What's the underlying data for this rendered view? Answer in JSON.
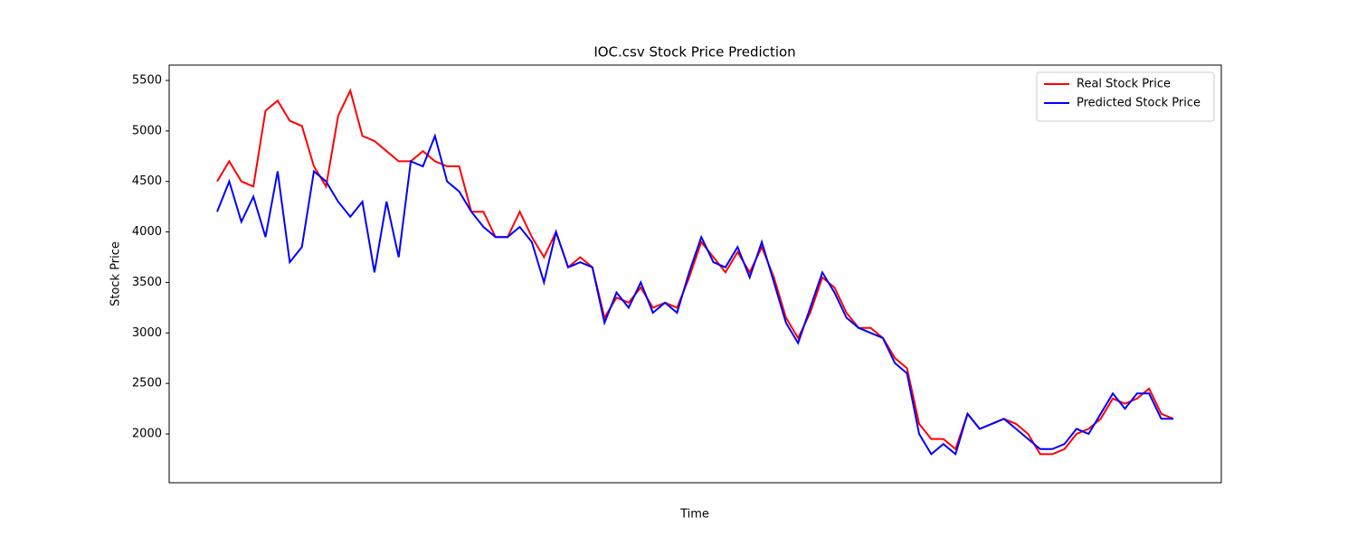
{
  "chart_data": {
    "type": "line",
    "title": "IOC.csv Stock Price Prediction",
    "x_label": "Time",
    "y_label": "Stock Price",
    "categories": [
      null,
      null,
      null,
      null,
      null,
      null,
      null,
      null,
      null,
      null,
      null,
      null,
      null,
      null,
      null,
      null,
      null,
      null,
      null,
      null,
      null,
      null,
      null,
      null,
      null,
      null,
      null,
      null,
      null,
      null,
      null,
      null,
      null,
      null,
      null,
      null,
      null,
      null,
      null,
      null,
      null,
      null,
      null,
      null,
      null,
      null,
      null,
      null,
      null,
      null,
      null,
      null,
      null,
      null,
      null,
      null,
      null,
      null,
      null,
      null,
      null,
      null,
      null,
      null,
      null,
      null,
      null,
      null,
      null,
      null,
      null,
      null,
      null,
      null,
      null,
      null,
      null,
      null,
      null,
      null
    ],
    "series": [
      {
        "name": "Real Stock Price",
        "color": "#ff0000",
        "values": [
          4500,
          4700,
          4500,
          4450,
          5200,
          5300,
          5100,
          5050,
          4650,
          4450,
          5150,
          5400,
          4950,
          4900,
          4800,
          4700,
          4700,
          4800,
          4700,
          4650,
          4650,
          4200,
          4200,
          3950,
          3950,
          4200,
          3950,
          3750,
          4000,
          3650,
          3750,
          3650,
          3150,
          3350,
          3300,
          3450,
          3250,
          3300,
          3250,
          3550,
          3900,
          3750,
          3600,
          3800,
          3600,
          3850,
          3550,
          3150,
          2950,
          3200,
          3550,
          3450,
          3200,
          3050,
          3050,
          2950,
          2750,
          2650,
          2100,
          1950,
          1950,
          1850,
          2200,
          2050,
          2100,
          2150,
          2100,
          2000,
          1800,
          1800,
          1850,
          2000,
          2050,
          2150,
          2350,
          2300,
          2350,
          2450,
          2200,
          2150
        ]
      },
      {
        "name": "Predicted Stock Price",
        "color": "#0000ff",
        "values": [
          4200,
          4500,
          4100,
          4350,
          3950,
          4600,
          3700,
          3850,
          4600,
          4500,
          4300,
          4150,
          4300,
          3600,
          4300,
          3750,
          4700,
          4650,
          4950,
          4500,
          4400,
          4200,
          4050,
          3950,
          3950,
          4050,
          3900,
          3500,
          4000,
          3650,
          3700,
          3650,
          3100,
          3400,
          3250,
          3500,
          3200,
          3300,
          3200,
          3600,
          3950,
          3700,
          3650,
          3850,
          3550,
          3900,
          3500,
          3100,
          2900,
          3250,
          3600,
          3400,
          3150,
          3050,
          3000,
          2950,
          2700,
          2600,
          2000,
          1800,
          1900,
          1800,
          2200,
          2050,
          2100,
          2150,
          2050,
          1950,
          1850,
          1850,
          1900,
          2050,
          2000,
          2200,
          2400,
          2250,
          2400,
          2400,
          2150,
          2150
        ]
      }
    ],
    "ylim": [
      1517,
      5652
    ],
    "yticks": [
      2000,
      2500,
      3000,
      3500,
      4000,
      4500,
      5000,
      5500
    ],
    "legend": "upper right"
  }
}
